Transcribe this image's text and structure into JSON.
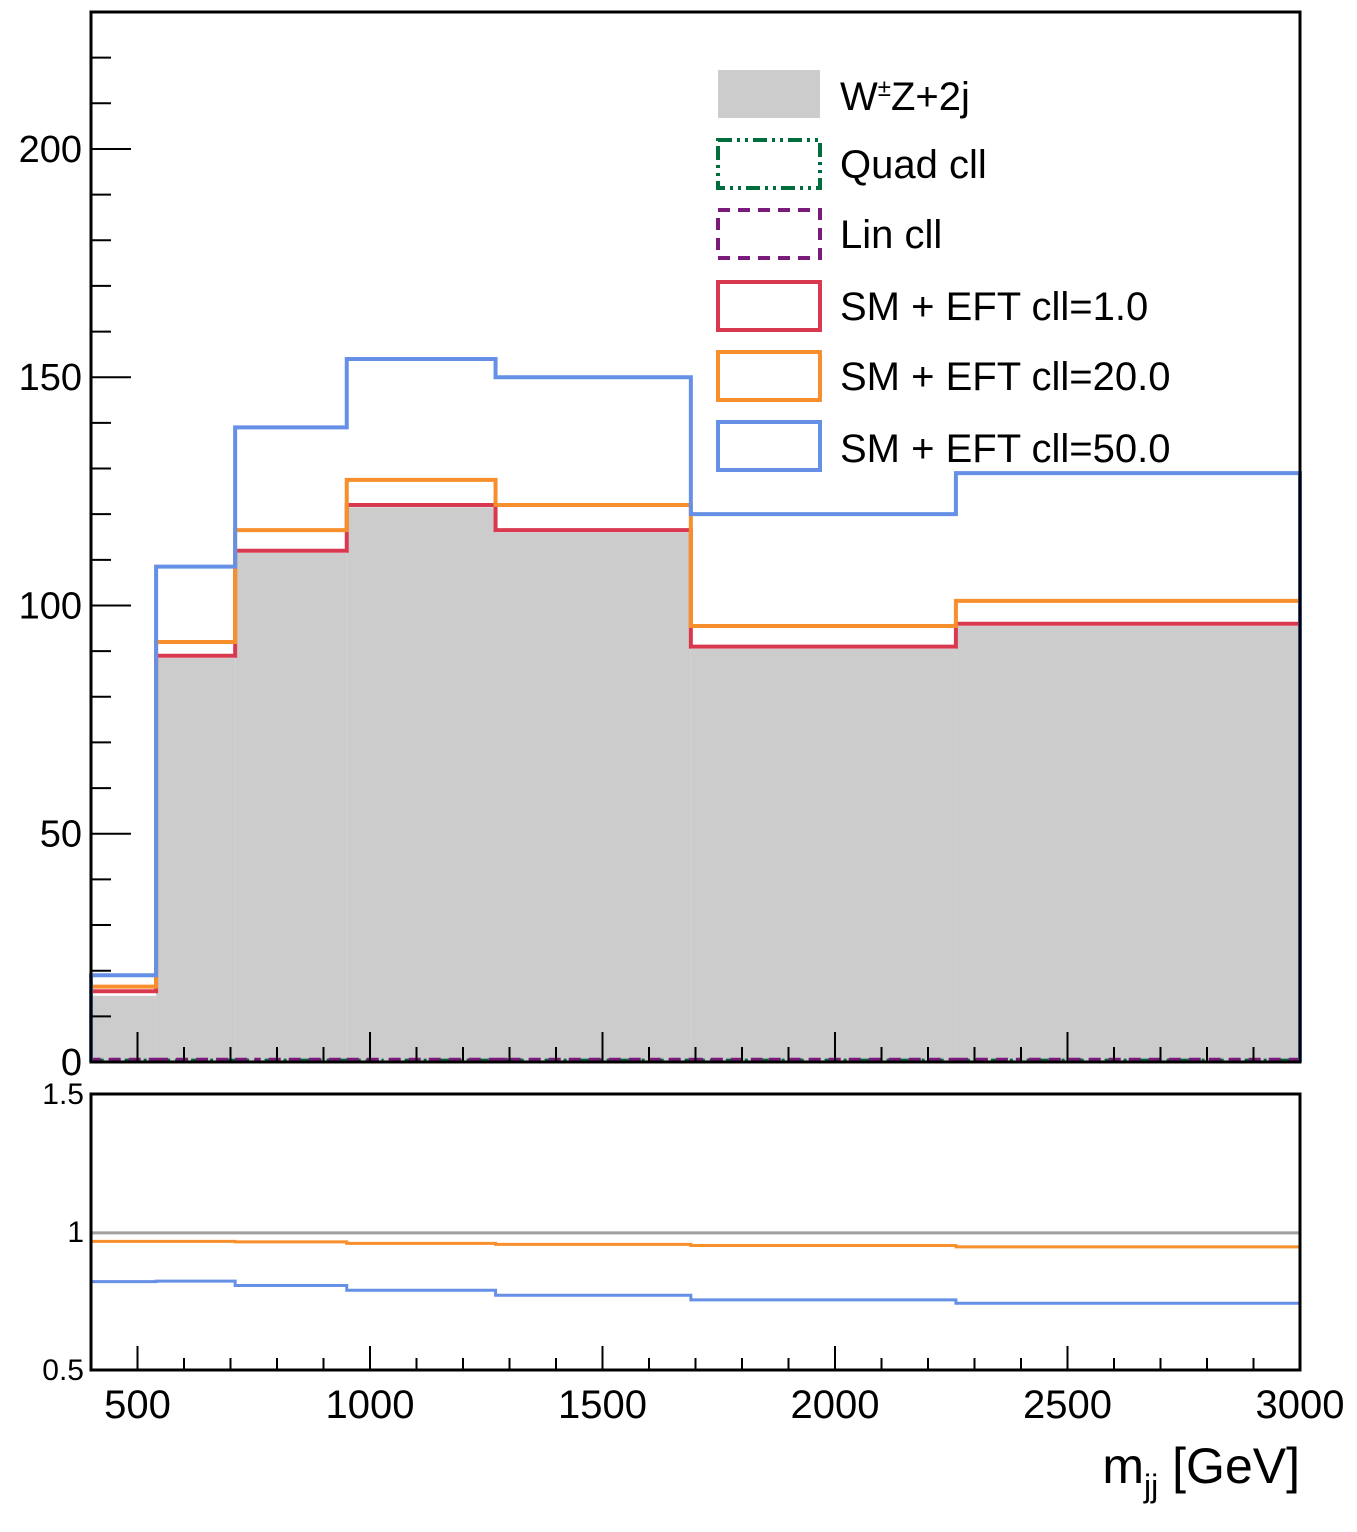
{
  "chart_data": [
    {
      "type": "line",
      "panel": "main",
      "bin_edges": [
        400,
        540,
        710,
        950,
        1270,
        1690,
        2260,
        3000
      ],
      "ylim": [
        0,
        230
      ],
      "xlim": [
        400,
        3000
      ],
      "yticks": [
        0,
        50,
        100,
        150,
        200
      ],
      "ytick_labels": [
        "0",
        "50",
        "100",
        "150",
        "200"
      ],
      "grid": false,
      "legend_position": "top-right",
      "series": [
        {
          "name": "W±Z+2j",
          "style": "filled",
          "color": "#cccccc",
          "values": [
            14.5,
            88.5,
            111.5,
            121.5,
            116.0,
            90.5,
            95.5
          ]
        },
        {
          "name": "Quad cll",
          "style": "dash-dot",
          "color": "#006d3c",
          "values": [
            0.3,
            0.3,
            0.3,
            0.3,
            0.3,
            0.3,
            0.3
          ]
        },
        {
          "name": "Lin cll",
          "style": "dashed",
          "color": "#7a1a7a",
          "values": [
            0.5,
            0.5,
            0.5,
            0.5,
            0.5,
            0.5,
            0.5
          ]
        },
        {
          "name": "SM + EFT cll=1.0",
          "style": "step",
          "color": "#d9394f",
          "values": [
            15.5,
            89.0,
            112.0,
            122.0,
            116.5,
            91.0,
            96.0
          ]
        },
        {
          "name": "SM + EFT cll=20.0",
          "style": "step",
          "color": "#f78f2c",
          "values": [
            16.5,
            92.0,
            116.5,
            127.5,
            122.0,
            95.5,
            101.0
          ]
        },
        {
          "name": "SM + EFT cll=50.0",
          "style": "step",
          "color": "#6590e6",
          "values": [
            19.0,
            108.5,
            139.0,
            154.0,
            150.0,
            120.0,
            129.0
          ]
        }
      ],
      "legend_symbol_label": "W",
      "legend_symbol_sup": "±",
      "legend_symbol_rest": "Z+2j"
    },
    {
      "type": "line",
      "panel": "ratio",
      "bin_edges": [
        400,
        540,
        710,
        950,
        1270,
        1690,
        2260,
        3000
      ],
      "ylim": [
        0.5,
        1.5
      ],
      "xlim": [
        400,
        3000
      ],
      "yticks": [
        0.5,
        1,
        1.5
      ],
      "ytick_labels": [
        "0.5",
        "1",
        "1.5"
      ],
      "xticks": [
        500,
        1000,
        1500,
        2000,
        2500,
        3000
      ],
      "xtick_labels": [
        "500",
        "1000",
        "1500",
        "2000",
        "2500",
        "3000"
      ],
      "xlabel": "m",
      "xlabel_sub": "jj",
      "xlabel_rest": " [GeV]",
      "series": [
        {
          "name": "SM + EFT cll=1.0",
          "color": "#a0a0a0",
          "values": [
            0.997,
            0.997,
            0.997,
            0.997,
            0.997,
            0.997,
            0.997
          ]
        },
        {
          "name": "SM + EFT cll=20.0",
          "color": "#f78f2c",
          "values": [
            0.966,
            0.966,
            0.964,
            0.959,
            0.955,
            0.951,
            0.946
          ]
        },
        {
          "name": "SM + EFT cll=50.0",
          "color": "#6590e6",
          "values": [
            0.82,
            0.822,
            0.806,
            0.789,
            0.771,
            0.754,
            0.742
          ]
        }
      ]
    }
  ]
}
